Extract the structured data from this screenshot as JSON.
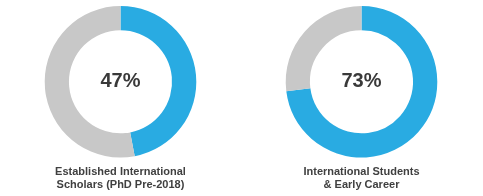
{
  "chart_data": [
    {
      "type": "doughnut",
      "title": [
        "Established International",
        "Scholars (PhD Pre-2018)"
      ],
      "values": [
        47,
        53
      ],
      "value_labels": [
        "47%",
        null
      ],
      "data_labels": true,
      "colors": [
        "#29ABE2",
        "#C8C8C8"
      ]
    },
    {
      "type": "doughnut",
      "title": [
        "International Students",
        "& Early Career"
      ],
      "values": [
        73,
        27
      ],
      "value_labels": [
        "73%",
        null
      ],
      "data_labels": true,
      "colors": [
        "#29ABE2",
        "#C8C8C8"
      ]
    }
  ]
}
